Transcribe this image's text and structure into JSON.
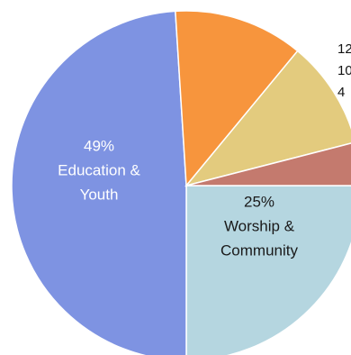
{
  "chart_data": {
    "type": "pie",
    "slices": [
      {
        "label": "Worship & Community",
        "value": 25,
        "color": "#b5d6e0",
        "percent_text": "25%",
        "label_lines": [
          "Worship &",
          "Community"
        ],
        "text_color": "#1a1a1a"
      },
      {
        "label": "Education & Youth",
        "value": 49,
        "color": "#7e93e2",
        "percent_text": "49%",
        "label_lines": [
          "Education &",
          "Youth"
        ],
        "text_color": "#ffffff"
      },
      {
        "label": "",
        "value": 12,
        "color": "#f7953d",
        "percent_text": "12",
        "label_lines": [],
        "text_color": "#111111"
      },
      {
        "label": "",
        "value": 10,
        "color": "#e3cb7e",
        "percent_text": "10",
        "label_lines": [],
        "text_color": "#111111"
      },
      {
        "label": "",
        "value": 4,
        "color": "#c47a6e",
        "percent_text": "4",
        "label_lines": [],
        "text_color": "#111111"
      }
    ],
    "start_angle": "east",
    "direction": "clockwise",
    "legend": "none"
  }
}
